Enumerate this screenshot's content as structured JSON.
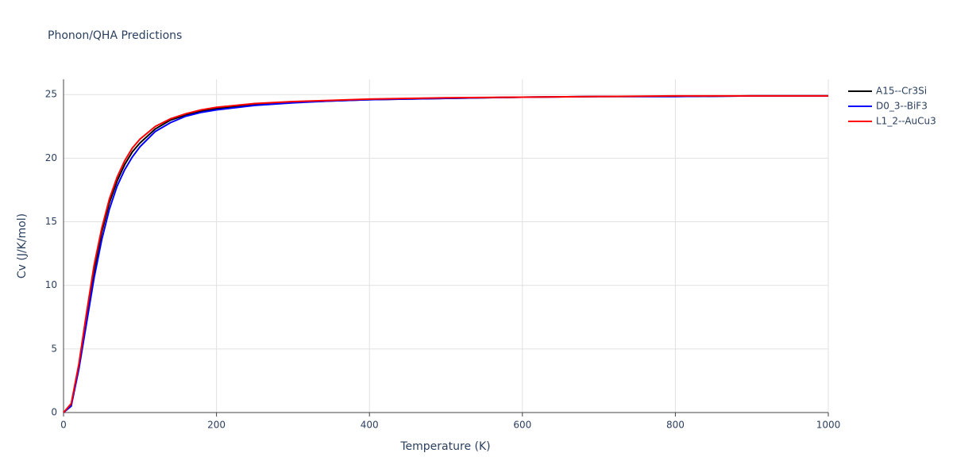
{
  "chart_data": {
    "type": "line",
    "title": "Phonon/QHA Predictions",
    "x_label": "Temperature (K)",
    "y_label": "Cv (J/K/mol)",
    "x": [
      0,
      10,
      20,
      30,
      40,
      50,
      60,
      70,
      80,
      90,
      100,
      120,
      140,
      160,
      180,
      200,
      250,
      300,
      350,
      400,
      500,
      600,
      700,
      800,
      900,
      1000
    ],
    "series": [
      {
        "name": "A15--Cr3Si",
        "color": "#000000",
        "values": [
          0,
          0.6,
          3.6,
          7.5,
          11.2,
          14.2,
          16.5,
          18.2,
          19.5,
          20.5,
          21.2,
          22.3,
          23.0,
          23.4,
          23.7,
          23.9,
          24.2,
          24.4,
          24.5,
          24.6,
          24.7,
          24.8,
          24.85,
          24.85,
          24.9,
          24.9
        ]
      },
      {
        "name": "D0_3--BiF3",
        "color": "#0000ff",
        "values": [
          0,
          0.5,
          3.4,
          7.0,
          10.6,
          13.6,
          16.0,
          17.8,
          19.1,
          20.1,
          20.9,
          22.1,
          22.8,
          23.3,
          23.6,
          23.8,
          24.15,
          24.35,
          24.5,
          24.6,
          24.7,
          24.8,
          24.85,
          24.85,
          24.9,
          24.9
        ]
      },
      {
        "name": "L1_2--AuCu3",
        "color": "#ff0000",
        "values": [
          0,
          0.7,
          3.8,
          7.8,
          11.6,
          14.5,
          16.8,
          18.5,
          19.8,
          20.8,
          21.5,
          22.5,
          23.1,
          23.5,
          23.8,
          24.0,
          24.3,
          24.45,
          24.55,
          24.65,
          24.75,
          24.8,
          24.85,
          24.9,
          24.9,
          24.9
        ]
      }
    ],
    "xlim": [
      0,
      1000
    ],
    "xticks": [
      0,
      200,
      400,
      600,
      800,
      1000
    ],
    "ylim": [
      0,
      26.2
    ],
    "yticks": [
      0,
      5,
      10,
      15,
      20,
      25
    ],
    "grid": true,
    "legend": "top-right"
  }
}
